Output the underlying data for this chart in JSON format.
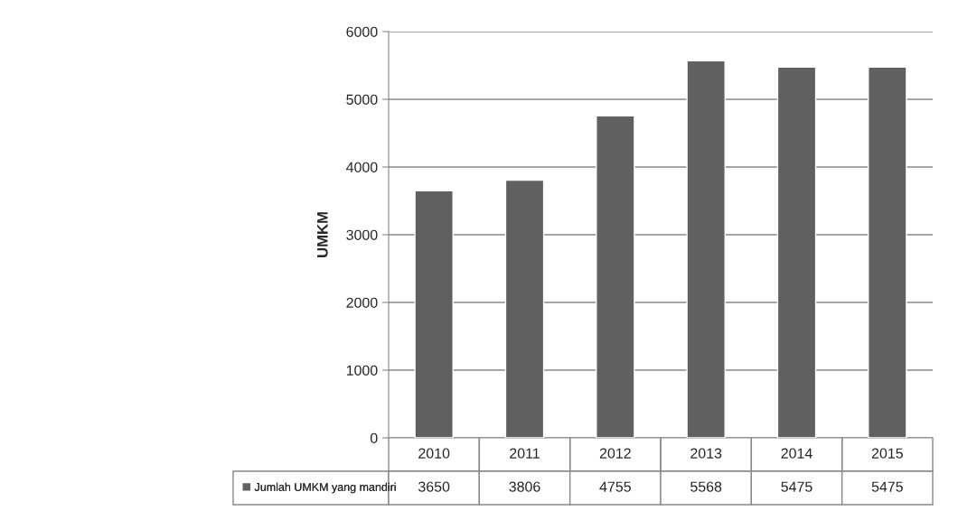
{
  "chart_data": {
    "type": "bar",
    "ylabel": "UMKM",
    "categories": [
      "2010",
      "2011",
      "2012",
      "2013",
      "2014",
      "2015"
    ],
    "series": [
      {
        "name": "Jumlah UMKM yang mandiri",
        "color": "#606060",
        "values": [
          3650,
          3806,
          4755,
          5568,
          5475,
          5475
        ]
      }
    ],
    "ylim": [
      0,
      6000
    ],
    "yticks": [
      0,
      1000,
      2000,
      3000,
      4000,
      5000,
      6000
    ],
    "grid": "y",
    "legend": "bottom",
    "data_labels": true
  }
}
